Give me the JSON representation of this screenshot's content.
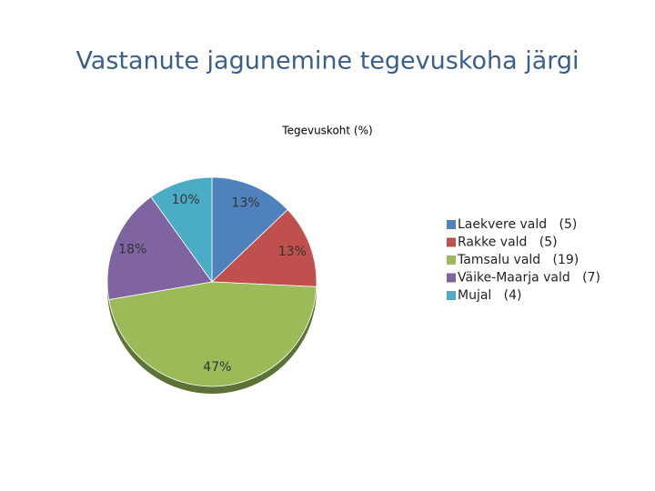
{
  "slide_title": "Vastanute jagunemine tegevuskoha järgi",
  "chart_data": {
    "type": "pie",
    "title": "Tegevuskoht (%)",
    "categories": [
      "Laekvere vald   (5)",
      "Rakke vald   (5)",
      "Tamsalu vald   (19)",
      "Väike-Maarja vald   (7)",
      "Mujal   (4)"
    ],
    "values": [
      13,
      13,
      47,
      18,
      10
    ],
    "value_labels": [
      "13%",
      "13%",
      "47%",
      "18%",
      "10%"
    ],
    "colors": [
      "#4f81bd",
      "#c0504d",
      "#9bbb59",
      "#8064a2",
      "#4bacc6"
    ],
    "legend": "right"
  }
}
